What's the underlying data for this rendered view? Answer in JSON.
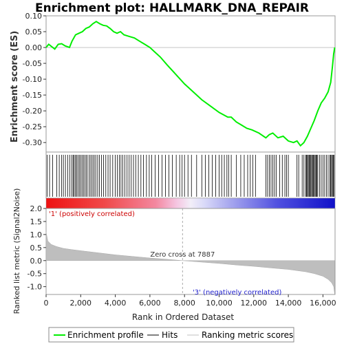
{
  "chart_data": {
    "type": "line",
    "title": "Enrichment plot: HALLMARK_DNA_REPAIR",
    "xlabel": "Rank in Ordered Dataset",
    "ylabel_top": "Enrichment score (ES)",
    "ylabel_bottom": "Ranked list metric (Signal2Noise)",
    "xlim": [
      0,
      16700
    ],
    "x_ticks": [
      0,
      2000,
      4000,
      6000,
      8000,
      10000,
      12000,
      14000,
      16000
    ],
    "x_tick_labels": [
      "0",
      "2,000",
      "4,000",
      "6,000",
      "8,000",
      "10,000",
      "12,000",
      "14,000",
      "16,000"
    ],
    "es_ylim": [
      -0.33,
      0.1
    ],
    "es_ticks": [
      0.1,
      0.05,
      0.0,
      -0.05,
      -0.1,
      -0.15,
      -0.2,
      -0.25,
      -0.3
    ],
    "es_tick_labels": [
      "0.10",
      "0.05",
      "0.00",
      "-0.05",
      "-0.10",
      "-0.15",
      "-0.20",
      "-0.25",
      "-0.30"
    ],
    "metric_ylim": [
      -1.3,
      2.0
    ],
    "metric_ticks": [
      2.0,
      1.5,
      1.0,
      0.5,
      0.0,
      -0.5,
      -1.0
    ],
    "metric_tick_labels": [
      "2.0",
      "1.5",
      "1.0",
      "0.5",
      "0.0",
      "-0.5",
      "-1.0"
    ],
    "es_curve": {
      "x": [
        0,
        150,
        500,
        700,
        900,
        1100,
        1350,
        1500,
        1700,
        1900,
        2100,
        2300,
        2500,
        2700,
        2900,
        3100,
        3300,
        3500,
        3700,
        3900,
        4100,
        4300,
        4500,
        4800,
        5100,
        5400,
        5700,
        6000,
        6300,
        6600,
        7000,
        7500,
        8000,
        8500,
        9000,
        9500,
        10000,
        10500,
        10700,
        11000,
        11300,
        11600,
        11900,
        12300,
        12700,
        12900,
        13100,
        13400,
        13700,
        14000,
        14300,
        14500,
        14700,
        14900,
        15100,
        15300,
        15500,
        15700,
        15900,
        16100,
        16300,
        16450,
        16550,
        16620,
        16680
      ],
      "y": [
        0.0,
        0.01,
        -0.005,
        0.01,
        0.012,
        0.005,
        0.0,
        0.02,
        0.04,
        0.045,
        0.05,
        0.06,
        0.065,
        0.075,
        0.082,
        0.075,
        0.07,
        0.068,
        0.06,
        0.05,
        0.045,
        0.05,
        0.04,
        0.035,
        0.03,
        0.02,
        0.01,
        0.0,
        -0.015,
        -0.03,
        -0.055,
        -0.085,
        -0.115,
        -0.14,
        -0.165,
        -0.185,
        -0.205,
        -0.22,
        -0.22,
        -0.235,
        -0.245,
        -0.255,
        -0.26,
        -0.27,
        -0.285,
        -0.275,
        -0.27,
        -0.285,
        -0.28,
        -0.295,
        -0.3,
        -0.295,
        -0.31,
        -0.3,
        -0.28,
        -0.255,
        -0.23,
        -0.2,
        -0.175,
        -0.16,
        -0.14,
        -0.11,
        -0.06,
        -0.02,
        0.0
      ]
    },
    "hits": [
      60,
      200,
      380,
      620,
      760,
      900,
      1000,
      1120,
      1250,
      1370,
      1480,
      1560,
      1620,
      1700,
      1760,
      1840,
      1920,
      2000,
      2080,
      2160,
      2250,
      2330,
      2420,
      2520,
      2600,
      2700,
      2780,
      2870,
      2980,
      3080,
      3200,
      3320,
      3450,
      3580,
      3700,
      3850,
      4000,
      4120,
      4230,
      4330,
      4430,
      4550,
      4680,
      4800,
      4920,
      5050,
      5180,
      5330,
      5480,
      5630,
      5800,
      5960,
      6100,
      6300,
      6500,
      6700,
      6900,
      7100,
      7300,
      7520,
      7720,
      7860,
      8000,
      8200,
      8400,
      8700,
      9000,
      9200,
      9400,
      9600,
      9800,
      10000,
      10150,
      10300,
      10450,
      10550,
      10700,
      11000,
      11250,
      11450,
      11650,
      11800,
      11950,
      12100,
      12700,
      12800,
      12900,
      13000,
      13100,
      13200,
      13300,
      13500,
      13650,
      13800,
      13900,
      14000,
      14500,
      14600,
      14800,
      14900,
      15000,
      15050,
      15100,
      15150,
      15200,
      15250,
      15300,
      15350,
      15400,
      15450,
      15500,
      15550,
      15600,
      15650,
      15700,
      15800,
      15900,
      16000,
      16100,
      16200,
      16300,
      16400,
      16450,
      16500,
      16550,
      16600,
      16650
    ],
    "metric_points": {
      "x": [
        0,
        100,
        300,
        600,
        1000,
        1500,
        2000,
        3000,
        4000,
        5000,
        6000,
        7000,
        7887,
        9000,
        10000,
        11000,
        12000,
        13000,
        14000,
        15000,
        15500,
        16000,
        16300,
        16500,
        16620,
        16680
      ],
      "y": [
        1.1,
        0.75,
        0.62,
        0.54,
        0.47,
        0.42,
        0.38,
        0.3,
        0.22,
        0.16,
        0.1,
        0.05,
        0.0,
        -0.06,
        -0.11,
        -0.17,
        -0.22,
        -0.28,
        -0.34,
        -0.43,
        -0.5,
        -0.6,
        -0.72,
        -0.85,
        -1.0,
        -1.3
      ]
    },
    "zero_cross_label": "Zero cross at 7887",
    "zero_cross_x": 7887,
    "pos_label": "'1' (positively correlated)",
    "neg_label": "'3' (negatively correlated)",
    "colorbar": {
      "stops": [
        0,
        0.2,
        0.38,
        0.45,
        0.5,
        0.55,
        0.62,
        0.8,
        1.0
      ],
      "colors": [
        "#ee1111",
        "#f04848",
        "#f388a0",
        "#f5c4e0",
        "#f2eef8",
        "#d8d8f8",
        "#b0b0f0",
        "#5050e0",
        "#1010c8"
      ]
    },
    "legend": [
      {
        "label": "Enrichment profile",
        "color": "#00ee00",
        "kind": "line"
      },
      {
        "label": "Hits",
        "color": "#000000",
        "kind": "line"
      },
      {
        "label": "Ranking metric scores",
        "color": "#c0c0c0",
        "kind": "line"
      }
    ],
    "colors": {
      "es_line": "#00ee00",
      "hits": "#000000",
      "metric_fill": "#bebebe"
    }
  }
}
